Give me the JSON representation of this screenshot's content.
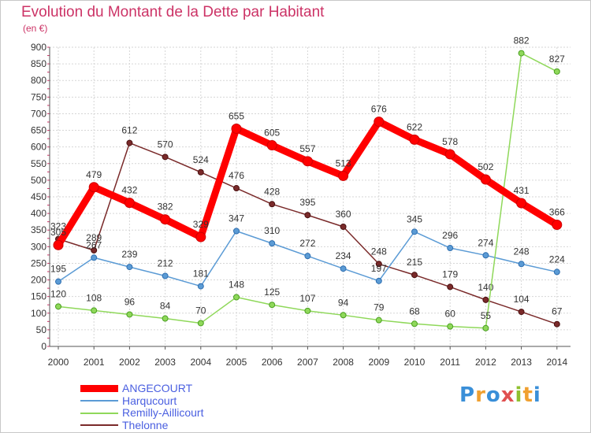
{
  "title": "Evolution du Montant de la Dette par Habitant",
  "unit": "(en €)",
  "logo": {
    "text": [
      "P",
      "r",
      "o",
      "x",
      "i",
      "t",
      "i"
    ],
    "colors": [
      "#3a8fd8",
      "#f0a030",
      "#3a8fd8",
      "#e05050",
      "#90c030",
      "#f0a030",
      "#3a8fd8"
    ]
  },
  "chart_data": {
    "type": "line",
    "title": "Evolution du Montant de la Dette par Habitant",
    "ylabel": "(en €)",
    "xlabel": "",
    "x": [
      "2000",
      "2001",
      "2002",
      "2003",
      "2004",
      "2005",
      "2006",
      "2007",
      "2008",
      "2009",
      "2010",
      "2011",
      "2012",
      "2013",
      "2014"
    ],
    "ylim": [
      0,
      900
    ],
    "yticks": [
      0,
      50,
      100,
      150,
      200,
      250,
      300,
      350,
      400,
      450,
      500,
      550,
      600,
      650,
      700,
      750,
      800,
      850,
      900
    ],
    "grid": true,
    "legend_position": "bottom-left",
    "series": [
      {
        "name": "ANGECOURT",
        "color": "#ff0000",
        "values": [
          305,
          479,
          432,
          382,
          329,
          655,
          605,
          557,
          513,
          676,
          622,
          578,
          502,
          431,
          366
        ],
        "labels": [
          "305",
          "479",
          "432",
          "382",
          "329",
          "655",
          "605",
          "557",
          "513",
          "676",
          "622",
          "578",
          "502",
          "431",
          "366"
        ]
      },
      {
        "name": "Harqucourt",
        "color": "#5b9bd5",
        "values": [
          195,
          267,
          239,
          212,
          181,
          347,
          310,
          272,
          234,
          197,
          345,
          296,
          274,
          248,
          224
        ],
        "labels": [
          "195",
          "267",
          "239",
          "212",
          "181",
          "347",
          "310",
          "272",
          "234",
          "197",
          "345",
          "296",
          "274",
          "248",
          "224"
        ]
      },
      {
        "name": "Remilly-Aillicourt",
        "color": "#8fd85a",
        "values": [
          120,
          108,
          96,
          84,
          70,
          148,
          125,
          107,
          94,
          79,
          68,
          60,
          55,
          882,
          827
        ],
        "labels": [
          "120",
          "108",
          "96",
          "84",
          "70",
          "148",
          "125",
          "107",
          "94",
          "79",
          "68",
          "60",
          "55",
          "882",
          "827"
        ]
      },
      {
        "name": "Thelonne",
        "color": "#7a2a2a",
        "values": [
          323,
          289,
          612,
          570,
          524,
          476,
          428,
          395,
          360,
          248,
          215,
          179,
          140,
          104,
          67
        ],
        "labels": [
          "323",
          "289",
          "612",
          "570",
          "524",
          "476",
          "428",
          "395",
          "360",
          "248",
          "215",
          "179",
          "140",
          "104",
          "67"
        ]
      }
    ]
  }
}
